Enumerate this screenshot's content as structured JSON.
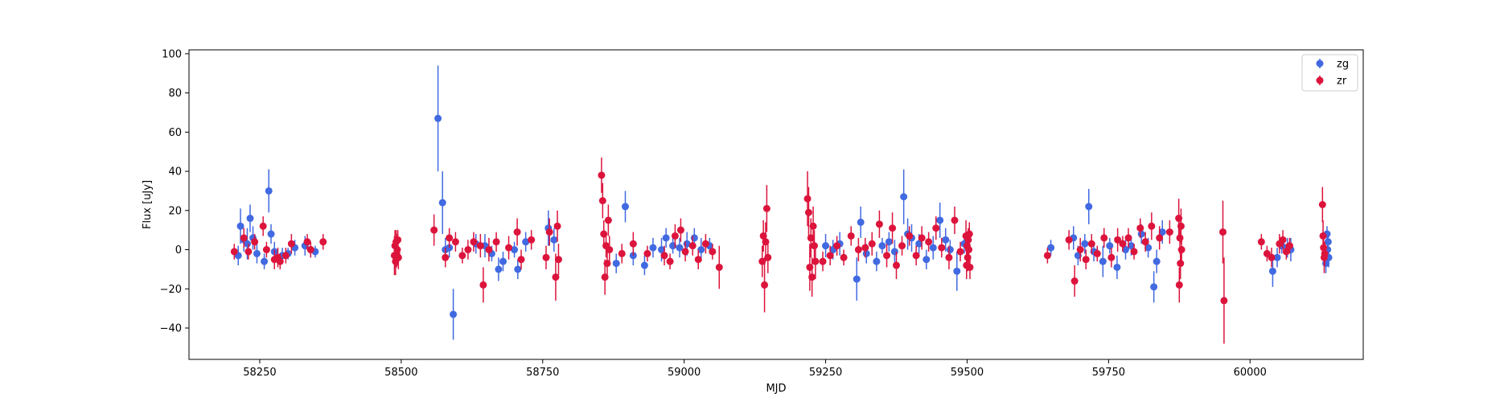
{
  "chart_data": {
    "type": "scatter",
    "xlabel": "MJD",
    "ylabel": "Flux [uJy]",
    "xlim": [
      58125,
      60200
    ],
    "ylim": [
      -56,
      102
    ],
    "xticks": [
      58250,
      58500,
      58750,
      59000,
      59250,
      59500,
      59750,
      60000
    ],
    "yticks": [
      -40,
      -20,
      0,
      20,
      40,
      60,
      80,
      100
    ],
    "grid": false,
    "legend_position": "top-right",
    "series": [
      {
        "name": "zg",
        "color": "#4169e1",
        "points": [
          [
            58212,
            -3,
            5
          ],
          [
            58216,
            12,
            9
          ],
          [
            58222,
            5,
            6
          ],
          [
            58228,
            3,
            8
          ],
          [
            58233,
            16,
            7
          ],
          [
            58238,
            6,
            6
          ],
          [
            58245,
            -2,
            5
          ],
          [
            58258,
            -6,
            4
          ],
          [
            58266,
            30,
            11
          ],
          [
            58270,
            8,
            5
          ],
          [
            58276,
            -1,
            5
          ],
          [
            58290,
            -3,
            4
          ],
          [
            58300,
            -2,
            3
          ],
          [
            58312,
            1,
            4
          ],
          [
            58330,
            2,
            5
          ],
          [
            58340,
            0,
            4
          ],
          [
            58348,
            -1,
            3
          ],
          [
            58565,
            67,
            27
          ],
          [
            58573,
            24,
            16
          ],
          [
            58578,
            0,
            6
          ],
          [
            58585,
            1,
            5
          ],
          [
            58592,
            -33,
            13
          ],
          [
            58632,
            3,
            5
          ],
          [
            58648,
            2,
            6
          ],
          [
            58660,
            -2,
            4
          ],
          [
            58672,
            -10,
            6
          ],
          [
            58680,
            -6,
            5
          ],
          [
            58700,
            0,
            4
          ],
          [
            58706,
            -10,
            5
          ],
          [
            58720,
            4,
            5
          ],
          [
            58760,
            11,
            9
          ],
          [
            58770,
            5,
            6
          ],
          [
            58880,
            -7,
            5
          ],
          [
            58896,
            22,
            8
          ],
          [
            58910,
            -3,
            5
          ],
          [
            58930,
            -8,
            5
          ],
          [
            58945,
            1,
            5
          ],
          [
            58960,
            0,
            6
          ],
          [
            58968,
            6,
            5
          ],
          [
            58980,
            2,
            4
          ],
          [
            58992,
            1,
            5
          ],
          [
            59005,
            3,
            6
          ],
          [
            59018,
            6,
            5
          ],
          [
            59030,
            0,
            6
          ],
          [
            59045,
            2,
            4
          ],
          [
            59250,
            2,
            6
          ],
          [
            59263,
            0,
            5
          ],
          [
            59275,
            3,
            6
          ],
          [
            59305,
            -15,
            11
          ],
          [
            59312,
            14,
            8
          ],
          [
            59322,
            -2,
            5
          ],
          [
            59340,
            -6,
            5
          ],
          [
            59350,
            2,
            4
          ],
          [
            59362,
            4,
            5
          ],
          [
            59372,
            -1,
            6
          ],
          [
            59388,
            27,
            14
          ],
          [
            59395,
            8,
            8
          ],
          [
            59402,
            6,
            7
          ],
          [
            59415,
            3,
            5
          ],
          [
            59428,
            -5,
            5
          ],
          [
            59440,
            1,
            6
          ],
          [
            59452,
            15,
            9
          ],
          [
            59462,
            5,
            6
          ],
          [
            59470,
            0,
            5
          ],
          [
            59482,
            -11,
            10
          ],
          [
            59495,
            3,
            5
          ],
          [
            59648,
            1,
            4
          ],
          [
            59688,
            6,
            6
          ],
          [
            59696,
            -3,
            5
          ],
          [
            59708,
            3,
            5
          ],
          [
            59715,
            22,
            9
          ],
          [
            59724,
            -1,
            5
          ],
          [
            59740,
            -6,
            8
          ],
          [
            59752,
            2,
            4
          ],
          [
            59765,
            -9,
            6
          ],
          [
            59780,
            0,
            5
          ],
          [
            59790,
            2,
            5
          ],
          [
            59808,
            8,
            5
          ],
          [
            59820,
            1,
            5
          ],
          [
            59830,
            -19,
            8
          ],
          [
            59835,
            -6,
            6
          ],
          [
            59845,
            9,
            6
          ],
          [
            60040,
            -11,
            8
          ],
          [
            60048,
            -4,
            5
          ],
          [
            60056,
            2,
            4
          ],
          [
            60066,
            1,
            5
          ],
          [
            60072,
            0,
            6
          ],
          [
            60134,
            -7,
            5
          ],
          [
            60136,
            8,
            4
          ],
          [
            60137,
            0,
            5
          ],
          [
            60138,
            4,
            4
          ],
          [
            60139,
            -4,
            5
          ]
        ]
      },
      {
        "name": "zr",
        "color": "#dc143c",
        "points": [
          [
            58205,
            -1,
            4
          ],
          [
            58222,
            6,
            5
          ],
          [
            58230,
            -1,
            4
          ],
          [
            58241,
            4,
            4
          ],
          [
            58256,
            12,
            5
          ],
          [
            58262,
            0,
            4
          ],
          [
            58276,
            -5,
            5
          ],
          [
            58282,
            -4,
            5
          ],
          [
            58286,
            -6,
            4
          ],
          [
            58296,
            -3,
            4
          ],
          [
            58306,
            3,
            5
          ],
          [
            58334,
            4,
            4
          ],
          [
            58340,
            0,
            4
          ],
          [
            58362,
            4,
            4
          ],
          [
            58488,
            -3,
            10
          ],
          [
            58489,
            2,
            8
          ],
          [
            58490,
            -6,
            7
          ],
          [
            58491,
            4,
            6
          ],
          [
            58492,
            -2,
            7
          ],
          [
            58493,
            0,
            8
          ],
          [
            58494,
            5,
            5
          ],
          [
            58495,
            -4,
            6
          ],
          [
            58558,
            10,
            8
          ],
          [
            58578,
            -4,
            5
          ],
          [
            58585,
            6,
            5
          ],
          [
            58596,
            4,
            5
          ],
          [
            58608,
            -3,
            4
          ],
          [
            58618,
            0,
            5
          ],
          [
            58628,
            4,
            5
          ],
          [
            58640,
            2,
            6
          ],
          [
            58645,
            -18,
            9
          ],
          [
            58655,
            0,
            6
          ],
          [
            58668,
            4,
            5
          ],
          [
            58690,
            1,
            6
          ],
          [
            58705,
            9,
            7
          ],
          [
            58712,
            -5,
            5
          ],
          [
            58730,
            5,
            5
          ],
          [
            58756,
            -4,
            6
          ],
          [
            58762,
            9,
            7
          ],
          [
            58773,
            -14,
            12
          ],
          [
            58776,
            12,
            8
          ],
          [
            58778,
            -5,
            8
          ],
          [
            58854,
            38,
            9
          ],
          [
            58856,
            25,
            9
          ],
          [
            58858,
            8,
            7
          ],
          [
            58860,
            -14,
            9
          ],
          [
            58862,
            2,
            6
          ],
          [
            58864,
            -7,
            8
          ],
          [
            58866,
            15,
            8
          ],
          [
            58868,
            0,
            7
          ],
          [
            58890,
            -2,
            5
          ],
          [
            58910,
            3,
            6
          ],
          [
            58935,
            -2,
            4
          ],
          [
            58965,
            -3,
            5
          ],
          [
            58975,
            -6,
            4
          ],
          [
            58984,
            7,
            6
          ],
          [
            58994,
            10,
            6
          ],
          [
            59002,
            -1,
            5
          ],
          [
            59015,
            2,
            5
          ],
          [
            59025,
            -5,
            5
          ],
          [
            59038,
            3,
            5
          ],
          [
            59050,
            -1,
            4
          ],
          [
            59062,
            -9,
            11
          ],
          [
            59138,
            -6,
            8
          ],
          [
            59140,
            7,
            8
          ],
          [
            59142,
            -18,
            14
          ],
          [
            59144,
            4,
            10
          ],
          [
            59146,
            21,
            12
          ],
          [
            59148,
            -4,
            8
          ],
          [
            59218,
            26,
            14
          ],
          [
            59220,
            19,
            13
          ],
          [
            59222,
            -9,
            12
          ],
          [
            59224,
            6,
            10
          ],
          [
            59226,
            -14,
            10
          ],
          [
            59228,
            12,
            10
          ],
          [
            59230,
            2,
            8
          ],
          [
            59232,
            -6,
            9
          ],
          [
            59245,
            -6,
            5
          ],
          [
            59258,
            -3,
            5
          ],
          [
            59270,
            2,
            5
          ],
          [
            59282,
            -4,
            4
          ],
          [
            59295,
            7,
            5
          ],
          [
            59308,
            0,
            6
          ],
          [
            59320,
            1,
            5
          ],
          [
            59332,
            3,
            6
          ],
          [
            59345,
            13,
            7
          ],
          [
            59358,
            -3,
            6
          ],
          [
            59368,
            11,
            8
          ],
          [
            59375,
            -8,
            7
          ],
          [
            59385,
            2,
            5
          ],
          [
            59398,
            7,
            5
          ],
          [
            59410,
            -3,
            5
          ],
          [
            59420,
            6,
            6
          ],
          [
            59432,
            4,
            5
          ],
          [
            59445,
            11,
            6
          ],
          [
            59455,
            1,
            5
          ],
          [
            59468,
            -4,
            6
          ],
          [
            59478,
            15,
            7
          ],
          [
            59488,
            -1,
            5
          ],
          [
            59498,
            7,
            8
          ],
          [
            59499,
            -8,
            7
          ],
          [
            59500,
            2,
            6
          ],
          [
            59501,
            -4,
            7
          ],
          [
            59502,
            5,
            6
          ],
          [
            59503,
            0,
            7
          ],
          [
            59504,
            8,
            6
          ],
          [
            59505,
            -9,
            6
          ],
          [
            59642,
            -3,
            4
          ],
          [
            59680,
            5,
            5
          ],
          [
            59690,
            -16,
            8
          ],
          [
            59700,
            0,
            6
          ],
          [
            59710,
            -5,
            5
          ],
          [
            59720,
            3,
            5
          ],
          [
            59730,
            -2,
            4
          ],
          [
            59742,
            6,
            5
          ],
          [
            59755,
            -4,
            5
          ],
          [
            59766,
            5,
            6
          ],
          [
            59775,
            3,
            4
          ],
          [
            59785,
            6,
            5
          ],
          [
            59795,
            -1,
            4
          ],
          [
            59806,
            11,
            5
          ],
          [
            59815,
            4,
            5
          ],
          [
            59826,
            12,
            7
          ],
          [
            59840,
            6,
            6
          ],
          [
            59858,
            9,
            6
          ],
          [
            59874,
            16,
            10
          ],
          [
            59875,
            -18,
            9
          ],
          [
            59876,
            6,
            8
          ],
          [
            59877,
            -7,
            8
          ],
          [
            59878,
            12,
            9
          ],
          [
            59879,
            0,
            7
          ],
          [
            59952,
            9,
            16
          ],
          [
            59954,
            -26,
            22
          ],
          [
            60020,
            4,
            4
          ],
          [
            60030,
            -2,
            4
          ],
          [
            60038,
            -4,
            5
          ],
          [
            60052,
            3,
            5
          ],
          [
            60058,
            5,
            5
          ],
          [
            60064,
            -1,
            4
          ],
          [
            60070,
            2,
            4
          ],
          [
            60128,
            23,
            9
          ],
          [
            60129,
            7,
            8
          ],
          [
            60130,
            1,
            6
          ],
          [
            60131,
            -4,
            8
          ],
          [
            60132,
            -2,
            6
          ]
        ]
      }
    ]
  }
}
